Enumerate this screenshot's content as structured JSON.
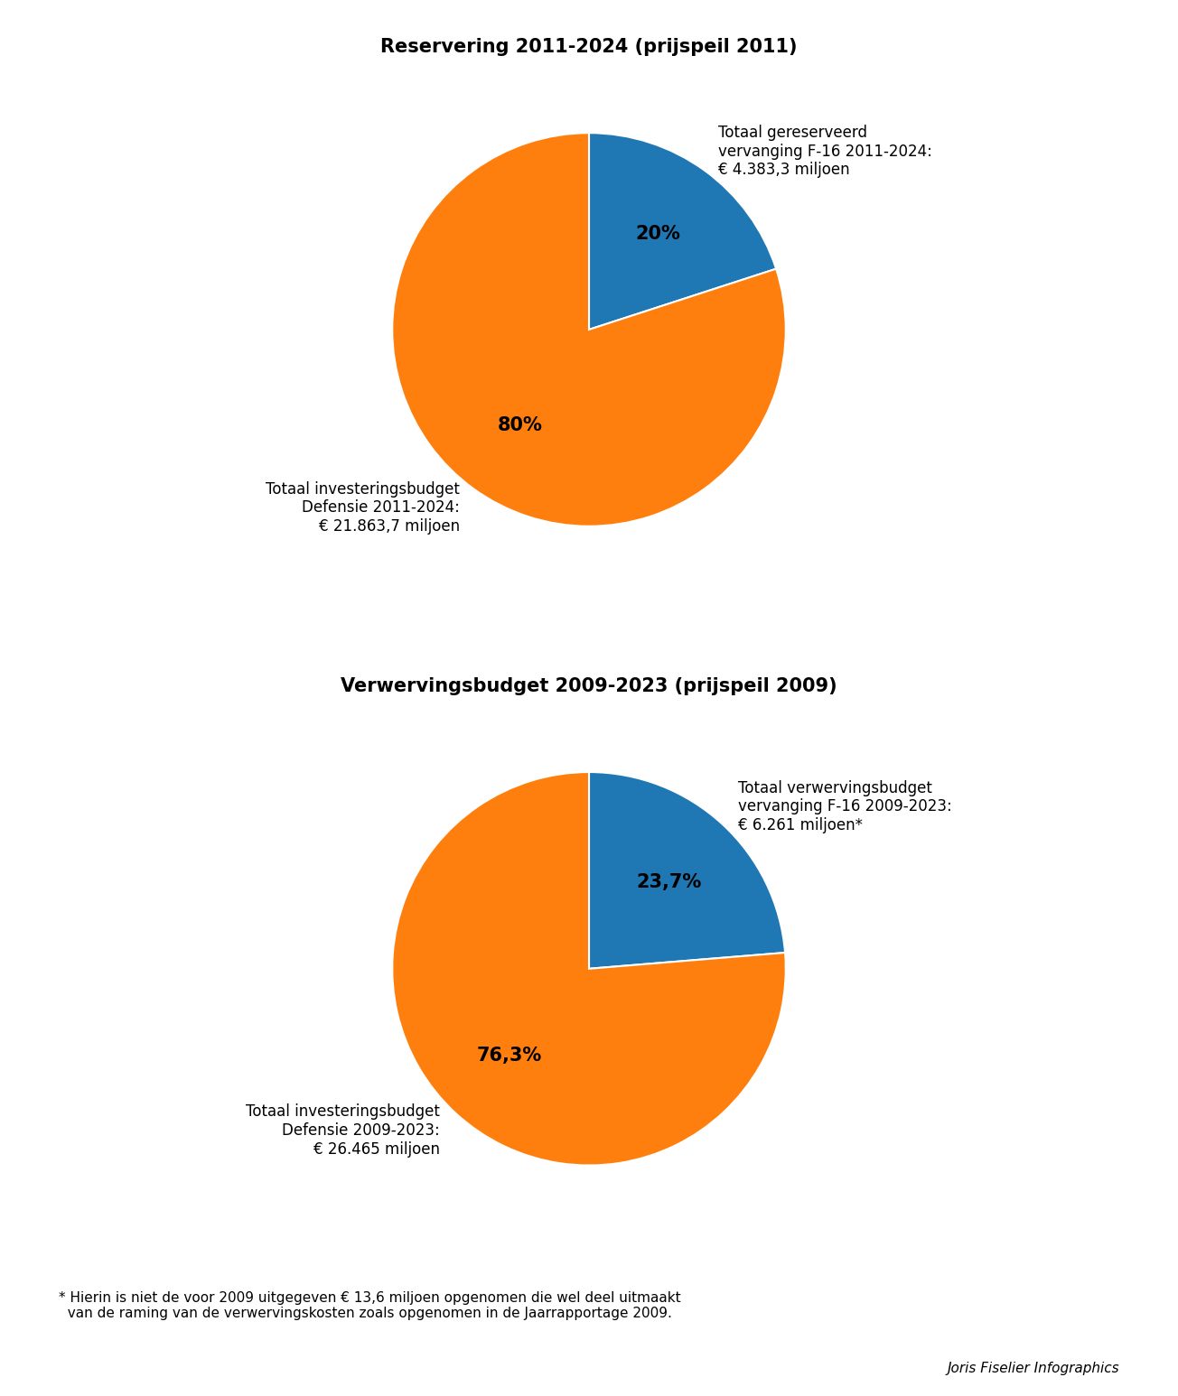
{
  "chart_data": [
    {
      "type": "pie",
      "title": "Reservering 2011-2024 (prijspeil 2011)",
      "categories": [
        "Totaal gereserveerd\nvervanging F-16 2011-2024:\n€ 4.383,3 miljoen",
        "Totaal investeringsbudget\nDefensie 2011-2024:\n€ 21.863,7 miljoen"
      ],
      "values": [
        20,
        80
      ],
      "value_labels": [
        "20%",
        "80%"
      ],
      "data_labels": true
    },
    {
      "type": "pie",
      "title": "Verwervingsbudget 2009-2023 (prijspeil 2009)",
      "categories": [
        "Totaal verwervingsbudget\nvervanging F-16 2009-2023:\n€ 6.261 miljoen*",
        "Totaal investeringsbudget\nDefensie 2009-2023:\n€ 26.465 miljoen"
      ],
      "values": [
        23.7,
        76.3
      ],
      "value_labels": [
        "23,7%",
        "76,3%"
      ],
      "data_labels": true
    }
  ],
  "footnote": [
    "* Hierin is niet de voor 2009 uitgegeven € 13,6 miljoen opgenomen die wel deel uitmaakt",
    "  van de raming van de verwervingskosten zoals opgenomen in de Jaarrapportage 2009."
  ],
  "credit": "Joris Fiselier Infographics"
}
